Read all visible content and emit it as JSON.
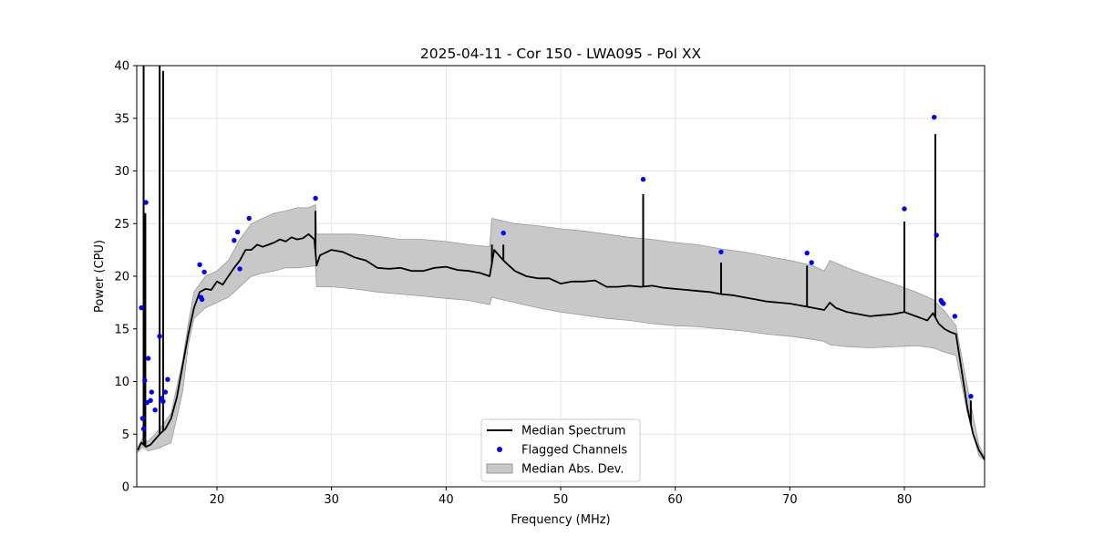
{
  "chart_data": {
    "type": "line",
    "title": "2025-04-11 - Cor 150 - LWA095 - Pol XX",
    "xlabel": "Frequency (MHz)",
    "ylabel": "Power (CPU)",
    "xlim": [
      13.0,
      87.0
    ],
    "ylim": [
      0,
      40
    ],
    "xticks": [
      20,
      30,
      40,
      50,
      60,
      70,
      80
    ],
    "yticks": [
      0,
      5,
      10,
      15,
      20,
      25,
      30,
      35,
      40
    ],
    "grid": true,
    "legend_position": "lower-center",
    "legend": [
      {
        "label": "Median Spectrum",
        "kind": "line",
        "color": "#000000"
      },
      {
        "label": "Flagged Channels",
        "kind": "marker",
        "color": "#0000ff"
      },
      {
        "label": "Median Abs. Dev.",
        "kind": "patch",
        "color": "#c8c8c8"
      }
    ],
    "series": [
      {
        "name": "Median Spectrum",
        "color": "#000000",
        "x": [
          13.1,
          13.4,
          13.8,
          14.2,
          14.6,
          15.0,
          15.5,
          16.0,
          16.5,
          17.0,
          17.5,
          18.0,
          18.5,
          19.0,
          19.5,
          20.0,
          20.5,
          21.0,
          21.5,
          22.0,
          22.5,
          23.0,
          23.5,
          24.0,
          24.5,
          25.0,
          25.5,
          26.0,
          26.5,
          27.0,
          27.5,
          28.0,
          28.5,
          28.7,
          29.0,
          30.0,
          31.0,
          32.0,
          33.0,
          34.0,
          35.0,
          36.0,
          37.0,
          38.0,
          39.0,
          40.0,
          41.0,
          42.0,
          43.0,
          43.8,
          44.2,
          45.0,
          46.0,
          47.0,
          48.0,
          49.0,
          50.0,
          51.0,
          52.0,
          53.0,
          54.0,
          55.0,
          56.0,
          57.0,
          58.0,
          59.0,
          60.0,
          61.0,
          62.0,
          63.0,
          64.0,
          65.0,
          66.0,
          67.0,
          68.0,
          69.0,
          70.0,
          71.0,
          72.0,
          73.0,
          73.5,
          74.0,
          75.0,
          76.0,
          77.0,
          78.0,
          79.0,
          80.0,
          81.0,
          82.0,
          82.5,
          83.0,
          83.5,
          84.0,
          84.5,
          85.0,
          85.5,
          86.0,
          86.5,
          87.0
        ],
        "values": [
          3.5,
          4.2,
          3.8,
          4.0,
          4.5,
          5.0,
          5.5,
          6.5,
          8.5,
          11.5,
          14.5,
          17.0,
          18.5,
          18.8,
          18.7,
          19.5,
          19.2,
          20.0,
          20.8,
          21.5,
          22.5,
          22.5,
          23.0,
          22.8,
          23.0,
          23.2,
          23.5,
          23.3,
          23.7,
          23.5,
          23.6,
          24.0,
          23.5,
          21.0,
          22.0,
          22.5,
          22.3,
          21.8,
          21.5,
          20.8,
          20.7,
          20.8,
          20.5,
          20.5,
          20.8,
          20.9,
          20.6,
          20.5,
          20.3,
          20.0,
          22.5,
          21.5,
          20.5,
          20.0,
          19.8,
          19.8,
          19.3,
          19.5,
          19.5,
          19.6,
          19.0,
          19.0,
          19.1,
          19.0,
          19.1,
          18.9,
          18.8,
          18.7,
          18.6,
          18.5,
          18.3,
          18.2,
          18.0,
          17.8,
          17.6,
          17.5,
          17.4,
          17.2,
          17.0,
          16.8,
          17.5,
          17.0,
          16.6,
          16.4,
          16.2,
          16.3,
          16.4,
          16.6,
          16.2,
          15.8,
          16.5,
          15.5,
          15.0,
          14.7,
          14.5,
          11.0,
          7.5,
          5.0,
          3.5,
          2.6
        ]
      }
    ],
    "mad_band": {
      "name": "Median Abs. Dev.",
      "color": "#c8c8c8",
      "x": [
        13.1,
        13.5,
        14.0,
        15.0,
        16.0,
        17.0,
        17.5,
        18.0,
        19.0,
        20.0,
        21.0,
        22.0,
        23.0,
        24.0,
        25.0,
        26.0,
        27.0,
        28.0,
        28.6,
        28.7,
        30.0,
        32.0,
        34.0,
        36.0,
        38.0,
        40.0,
        42.0,
        43.8,
        44.0,
        46.0,
        48.0,
        50.0,
        52.0,
        54.0,
        56.0,
        58.0,
        60.0,
        62.0,
        64.0,
        66.0,
        68.0,
        70.0,
        72.0,
        73.0,
        73.5,
        75.0,
        77.0,
        79.0,
        81.0,
        82.5,
        83.5,
        84.5,
        85.5,
        86.5,
        87.0
      ],
      "upper": [
        3.8,
        4.6,
        4.3,
        5.5,
        7.0,
        12.0,
        15.5,
        18.5,
        20.0,
        20.5,
        21.5,
        23.5,
        25.0,
        25.5,
        26.0,
        26.2,
        26.5,
        26.5,
        26.8,
        24.0,
        24.0,
        24.0,
        23.8,
        23.5,
        23.5,
        23.3,
        23.0,
        22.8,
        25.5,
        25.0,
        24.8,
        24.5,
        24.3,
        24.0,
        23.7,
        23.5,
        23.2,
        23.0,
        22.6,
        22.3,
        21.9,
        21.5,
        21.0,
        20.5,
        21.5,
        20.8,
        20.0,
        19.3,
        18.5,
        17.8,
        16.7,
        15.3,
        9.5,
        4.0,
        2.8
      ],
      "lower": [
        3.3,
        3.8,
        3.4,
        3.7,
        4.2,
        9.0,
        13.5,
        16.0,
        17.0,
        17.5,
        18.0,
        19.0,
        20.0,
        20.3,
        20.5,
        20.8,
        20.8,
        20.9,
        21.0,
        19.0,
        19.0,
        18.8,
        18.5,
        18.3,
        18.1,
        17.9,
        17.7,
        17.3,
        18.0,
        17.5,
        17.0,
        16.6,
        16.3,
        16.0,
        15.8,
        15.5,
        15.3,
        15.2,
        15.0,
        14.8,
        14.5,
        14.3,
        14.0,
        13.8,
        13.5,
        13.3,
        13.2,
        13.3,
        13.4,
        13.2,
        12.8,
        12.5,
        7.0,
        3.0,
        2.5
      ]
    },
    "spikes": [
      {
        "x": 13.6,
        "y": 40.0
      },
      {
        "x": 13.75,
        "y": 26.0
      },
      {
        "x": 15.0,
        "y": 40.0
      },
      {
        "x": 15.3,
        "y": 39.5
      },
      {
        "x": 28.6,
        "y": 26.2
      },
      {
        "x": 44.0,
        "y": 23.0
      },
      {
        "x": 45.0,
        "y": 23.0
      },
      {
        "x": 57.2,
        "y": 27.8
      },
      {
        "x": 64.0,
        "y": 21.3
      },
      {
        "x": 71.5,
        "y": 21.0
      },
      {
        "x": 80.0,
        "y": 25.2
      },
      {
        "x": 82.7,
        "y": 33.5
      },
      {
        "x": 85.8,
        "y": 8.2
      }
    ],
    "flagged_channels": {
      "name": "Flagged Channels",
      "color": "#0000ff",
      "x": [
        13.4,
        13.5,
        13.6,
        13.7,
        13.8,
        13.9,
        14.0,
        14.2,
        14.3,
        14.6,
        15.0,
        15.2,
        15.3,
        15.5,
        15.7,
        18.5,
        18.6,
        18.7,
        18.9,
        21.5,
        21.8,
        22.0,
        22.8,
        28.6,
        45.0,
        57.2,
        64.0,
        71.5,
        71.9,
        80.0,
        82.6,
        82.8,
        83.2,
        83.3,
        83.4,
        84.4,
        85.8
      ],
      "y": [
        17.0,
        6.5,
        5.5,
        10.1,
        27.0,
        8.0,
        12.2,
        8.2,
        9.0,
        7.3,
        14.3,
        8.4,
        8.1,
        9.0,
        10.2,
        21.1,
        18.0,
        17.8,
        20.4,
        23.4,
        24.2,
        20.7,
        25.5,
        27.4,
        24.1,
        29.2,
        22.3,
        22.2,
        21.3,
        26.4,
        35.1,
        23.9,
        17.7,
        17.5,
        17.4,
        16.2,
        8.6
      ]
    }
  }
}
